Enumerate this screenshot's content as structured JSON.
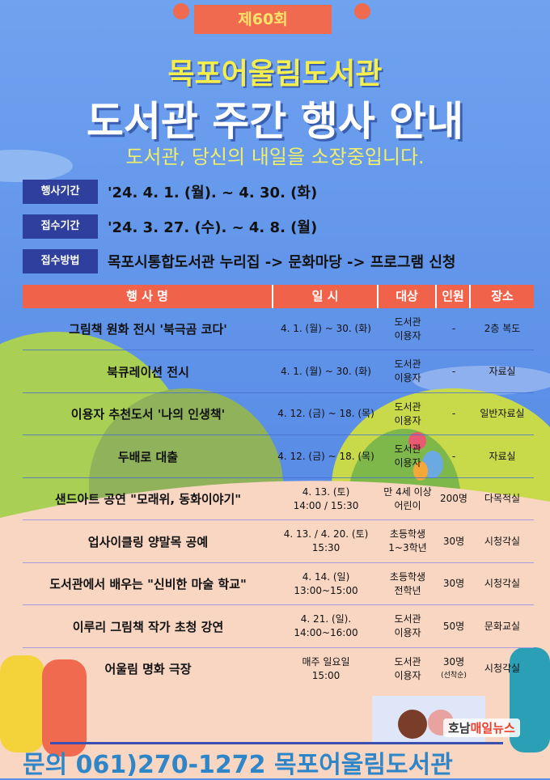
{
  "header": {
    "badge": "제60회",
    "library": "목포어울림도서관",
    "title": "도서관 주간 행사 안내",
    "slogan": "도서관, 당신의 내일을 소장중입니다."
  },
  "info": [
    {
      "label": "행사기간",
      "value": "'24. 4. 1. (월). ~ 4. 30. (화)"
    },
    {
      "label": "접수기간",
      "value": "'24. 3. 27. (수). ~ 4. 8. (월)"
    },
    {
      "label": "접수방법",
      "value": "목포시통합도서관 누리집 -> 문화마당 -> 프로그램 신청"
    }
  ],
  "table": {
    "headers": [
      "행 사 명",
      "일 시",
      "대상",
      "인원",
      "장소"
    ],
    "rows": [
      {
        "name": "그림책 원화 전시 '북극곰 코다'",
        "date": [
          "4. 1. (월) ~ 30. (화)",
          ""
        ],
        "target": [
          "도서관",
          "이용자"
        ],
        "count": [
          "-",
          ""
        ],
        "place": "2층 복도"
      },
      {
        "name": "북큐레이션 전시",
        "date": [
          "4. 1. (월) ~ 30. (화)",
          ""
        ],
        "target": [
          "도서관",
          "이용자"
        ],
        "count": [
          "-",
          ""
        ],
        "place": "자료실"
      },
      {
        "name": "이용자 추천도서 '나의 인생책'",
        "date": [
          "4. 12. (금) ~ 18. (목)",
          ""
        ],
        "target": [
          "도서관",
          "이용자"
        ],
        "count": [
          "-",
          ""
        ],
        "place": "일반자료실"
      },
      {
        "name": "두배로 대출",
        "date": [
          "4. 12. (금) ~ 18. (목)",
          ""
        ],
        "target": [
          "도서관",
          "이용자"
        ],
        "count": [
          "-",
          ""
        ],
        "place": "자료실"
      },
      {
        "name": "샌드아트 공연 \"모래위, 동화이야기\"",
        "date": [
          "4. 13. (토)",
          "14:00 / 15:30"
        ],
        "target": [
          "만 4세 이상",
          "어린이"
        ],
        "count": [
          "200명",
          ""
        ],
        "place": "다목적실"
      },
      {
        "name": "업사이클링 양말목 공예",
        "date": [
          "4. 13. / 4. 20. (토)",
          "15:30"
        ],
        "target": [
          "초등학생",
          "1~3학년"
        ],
        "count": [
          "30명",
          ""
        ],
        "place": "시청각실"
      },
      {
        "name": "도서관에서 배우는 \"신비한 마술 학교\"",
        "date": [
          "4. 14. (일)",
          "13:00~15:00"
        ],
        "target": [
          "초등학생",
          "전학년"
        ],
        "count": [
          "30명",
          ""
        ],
        "place": "시청각실"
      },
      {
        "name": "이루리 그림책 작가 초청 강연",
        "date": [
          "4. 21. (일).",
          "14:00~16:00"
        ],
        "target": [
          "도서관",
          "이용자"
        ],
        "count": [
          "50명",
          ""
        ],
        "place": "문화교실"
      },
      {
        "name": "어울림 명화 극장",
        "date": [
          "매주 일요일",
          "15:00"
        ],
        "target": [
          "도서관",
          "이용자"
        ],
        "count": [
          "30명",
          "(선착순)"
        ],
        "place": "시청각실"
      }
    ]
  },
  "footer": {
    "contact": "문의 061)270-1272 목포어울림도서관",
    "watermark_a": "호남",
    "watermark_b": "매일뉴스"
  },
  "colors": {
    "sky": "#5a8fe6",
    "header_row": "#f0634a",
    "label_box": "#2f3f9e",
    "sand": "#f8d6c2",
    "hills": "#a9cf55",
    "footer_text": "#2e86c8"
  }
}
